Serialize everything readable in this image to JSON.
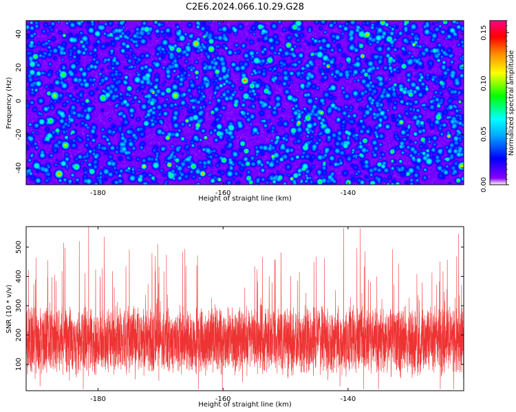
{
  "title": "C2E6.2024.066.10.29.G28",
  "chart_data": [
    {
      "type": "heatmap",
      "name": "spectrogram",
      "xlabel": "Height of straight line (km)",
      "ylabel": "Frequency (Hz)",
      "xlim": [
        -191.5,
        -121.5
      ],
      "ylim": [
        -50,
        48
      ],
      "xticks": [
        -180,
        -160,
        -140
      ],
      "yticks": [
        -40,
        -20,
        0,
        20,
        40
      ],
      "colorbar": {
        "label": "Normalized spectral amplitude",
        "range": [
          0.0,
          0.162
        ],
        "ticks": [
          0.0,
          0.05,
          0.1,
          0.15
        ],
        "tick_labels": [
          "0.00",
          "0.05",
          "0.10",
          "0.15"
        ],
        "colors": [
          "#ffffff",
          "#8800ff",
          "#0000ff",
          "#00aaff",
          "#00ffff",
          "#00ff00",
          "#ffff00",
          "#ff8800",
          "#ff0000",
          "#ff0088"
        ]
      }
    },
    {
      "type": "line",
      "name": "snr",
      "xlabel": "Height of straight line (km)",
      "ylabel": "SNR (10 * v/v)",
      "xlim": [
        -191.5,
        -121.5
      ],
      "ylim": [
        10,
        570
      ],
      "xticks": [
        -180,
        -160,
        -140
      ],
      "yticks": [
        100,
        200,
        300,
        400,
        500
      ],
      "color": "#ee3333",
      "samples": 4000,
      "typical_range": [
        110,
        280
      ],
      "mean": 180,
      "peaks": [
        {
          "x": -181.5,
          "y": 570
        },
        {
          "x": -179.0,
          "y": 535
        },
        {
          "x": -183.0,
          "y": 520
        },
        {
          "x": -185.5,
          "y": 515
        },
        {
          "x": -122.3,
          "y": 545
        }
      ]
    }
  ]
}
